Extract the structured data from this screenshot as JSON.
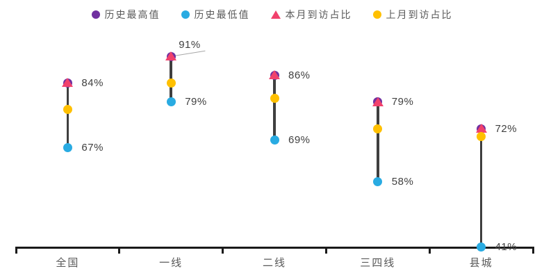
{
  "legend": {
    "items": [
      {
        "label": "历史最高值",
        "shape": "circle",
        "color": "#7030A0"
      },
      {
        "label": "历史最低值",
        "shape": "circle",
        "color": "#29ABE2"
      },
      {
        "label": "本月到访占比",
        "shape": "triangle",
        "color": "#F1416C"
      },
      {
        "label": "上月到访占比",
        "shape": "circle",
        "color": "#FFC000"
      }
    ]
  },
  "chart_data": {
    "type": "scatter",
    "subtype": "dumbbell-range",
    "title": "",
    "categories": [
      "全国",
      "一线",
      "二线",
      "三四线",
      "县城"
    ],
    "series": [
      {
        "name": "历史最高值",
        "marker": "circle",
        "color": "#7030A0",
        "values": [
          84,
          91,
          86,
          79,
          72
        ]
      },
      {
        "name": "历史最低值",
        "marker": "circle",
        "color": "#29ABE2",
        "values": [
          67,
          79,
          69,
          58,
          41
        ]
      },
      {
        "name": "本月到访占比",
        "marker": "triangle",
        "color": "#F1416C",
        "values": [
          84,
          91,
          86,
          79,
          72
        ]
      },
      {
        "name": "上月到访占比",
        "marker": "circle",
        "color": "#FFC000",
        "values": [
          77,
          84,
          80,
          72,
          70
        ]
      }
    ],
    "labels_high": [
      "84%",
      "91%",
      "86%",
      "79%",
      "72%"
    ],
    "labels_low": [
      "67%",
      "79%",
      "69%",
      "58%",
      "41%"
    ],
    "ylim": [
      41,
      91
    ],
    "unit": "%",
    "grid": false,
    "legend_position": "top",
    "annotations": [
      {
        "text": "91%",
        "target_category": "一线",
        "has_leader_line": true
      }
    ]
  },
  "colors": {
    "stem": "#3f3f3f",
    "axis": "#1a1a1a",
    "value_label": "#404040",
    "category_label": "#595959",
    "leader_line": "#a6a6a6",
    "background": "#ffffff"
  }
}
